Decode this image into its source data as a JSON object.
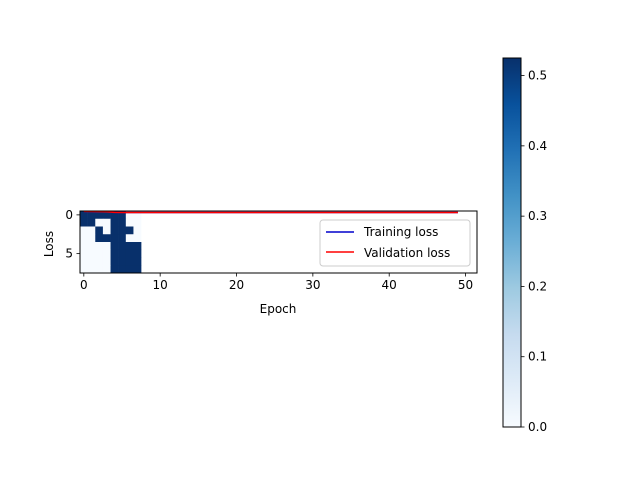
{
  "chart_data": {
    "type": "heatmap",
    "xlabel": "Epoch",
    "ylabel": "Loss",
    "xlim": [
      -0.5,
      51.5
    ],
    "ylim": [
      7.5,
      -0.5
    ],
    "x_ticks": [
      0,
      10,
      20,
      30,
      40,
      50
    ],
    "y_ticks": [
      0,
      5
    ],
    "grid": false,
    "legend_position": "upper right",
    "heatmap": {
      "colormap": "Blues",
      "vmin": 0.0,
      "vmax": 0.525,
      "x_range": [
        0,
        7
      ],
      "y_range": [
        0,
        7
      ],
      "values": [
        [
          0.525,
          0.525,
          0.525,
          0.525,
          0.525,
          0.525,
          0.0,
          0.0
        ],
        [
          0.525,
          0.525,
          0.0,
          0.0,
          0.525,
          0.525,
          0.0,
          0.0
        ],
        [
          0.0,
          0.0,
          0.525,
          0.0,
          0.525,
          0.525,
          0.525,
          0.0
        ],
        [
          0.0,
          0.0,
          0.525,
          0.525,
          0.525,
          0.525,
          0.0,
          0.0
        ],
        [
          0.0,
          0.0,
          0.0,
          0.0,
          0.525,
          0.525,
          0.525,
          0.525
        ],
        [
          0.0,
          0.0,
          0.0,
          0.0,
          0.525,
          0.525,
          0.525,
          0.525
        ],
        [
          0.0,
          0.0,
          0.0,
          0.0,
          0.525,
          0.525,
          0.525,
          0.525
        ],
        [
          0.0,
          0.0,
          0.0,
          0.0,
          0.525,
          0.525,
          0.525,
          0.525
        ]
      ]
    },
    "series": [
      {
        "name": "Training loss",
        "color": "#0000cc",
        "x": [
          0,
          3,
          4,
          5,
          10,
          20,
          30,
          40,
          49
        ],
        "y": [
          -0.45,
          -0.4,
          -0.32,
          -0.3,
          -0.3,
          -0.3,
          -0.3,
          -0.3,
          -0.3
        ]
      },
      {
        "name": "Validation loss",
        "color": "#ff0000",
        "x": [
          0,
          3,
          4,
          5,
          10,
          20,
          30,
          40,
          49
        ],
        "y": [
          -0.45,
          -0.4,
          -0.33,
          -0.31,
          -0.3,
          -0.3,
          -0.3,
          -0.3,
          -0.3
        ]
      }
    ],
    "colorbar": {
      "ticks": [
        0.0,
        0.1,
        0.2,
        0.3,
        0.4,
        0.5
      ],
      "tick_labels": [
        "0.0",
        "0.1",
        "0.2",
        "0.3",
        "0.4",
        "0.5"
      ]
    }
  }
}
